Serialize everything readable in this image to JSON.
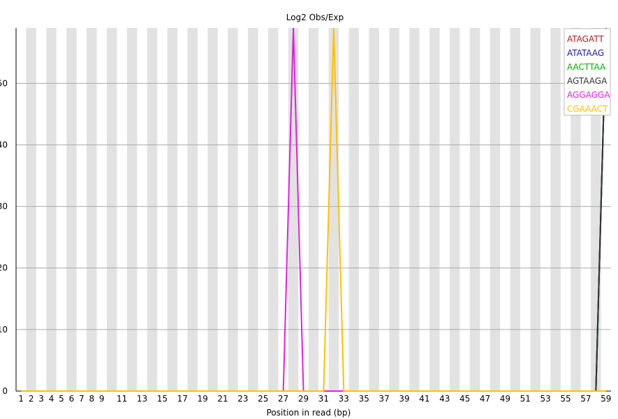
{
  "chart_data": {
    "type": "line",
    "title": "Log2 Obs/Exp",
    "xlabel": "Position in read (bp)",
    "ylabel": "",
    "x": [
      1,
      2,
      3,
      4,
      5,
      6,
      7,
      8,
      9,
      10,
      11,
      12,
      13,
      14,
      15,
      16,
      17,
      18,
      19,
      20,
      21,
      22,
      23,
      24,
      25,
      26,
      27,
      28,
      29,
      30,
      31,
      32,
      33,
      34,
      35,
      36,
      37,
      38,
      39,
      40,
      41,
      42,
      43,
      44,
      45,
      46,
      47,
      48,
      49,
      50,
      51,
      52,
      53,
      54,
      55,
      56,
      57,
      58,
      59
    ],
    "x_tick_labels": [
      "1",
      "2",
      "3",
      "4",
      "5",
      "6",
      "7",
      "8",
      "9",
      "11",
      "13",
      "15",
      "17",
      "19",
      "21",
      "23",
      "25",
      "27",
      "29",
      "31",
      "33",
      "35",
      "37",
      "39",
      "41",
      "43",
      "45",
      "47",
      "49",
      "51",
      "53",
      "55",
      "57",
      "59"
    ],
    "ylim": [
      0,
      59
    ],
    "yticks": [
      0,
      10,
      20,
      30,
      40,
      50
    ],
    "grid": true,
    "legend_position": "top-right",
    "series": [
      {
        "name": "ATAGATT",
        "color": "#b01c1c",
        "values": [
          0,
          0,
          0,
          0,
          0,
          0,
          0,
          0,
          0,
          0,
          0,
          0,
          0,
          0,
          0,
          0,
          0,
          0,
          0,
          0,
          0,
          0,
          0,
          0,
          0,
          0,
          0,
          0,
          0,
          0,
          0,
          0,
          0,
          0,
          0,
          0,
          0,
          0,
          0,
          0,
          0,
          0,
          0,
          0,
          0,
          0,
          0,
          0,
          0,
          0,
          0,
          0,
          0,
          0,
          0,
          0,
          0,
          0,
          59
        ]
      },
      {
        "name": "ATATAAG",
        "color": "#1c1ca0",
        "values": [
          0,
          0,
          0,
          0,
          0,
          0,
          0,
          0,
          0,
          0,
          0,
          0,
          0,
          0,
          0,
          0,
          0,
          0,
          0,
          0,
          0,
          0,
          0,
          0,
          0,
          0,
          0,
          0,
          0,
          0,
          0,
          0,
          0,
          0,
          0,
          0,
          0,
          0,
          0,
          0,
          0,
          0,
          0,
          0,
          0,
          0,
          0,
          0,
          0,
          0,
          0,
          0,
          0,
          0,
          0,
          0,
          0,
          0,
          59
        ]
      },
      {
        "name": "AACTTAA",
        "color": "#00b000",
        "values": [
          0,
          0,
          0,
          0,
          0,
          0,
          0,
          0,
          0,
          0,
          0,
          0,
          0,
          0,
          0,
          0,
          0,
          0,
          0,
          0,
          0,
          0,
          0,
          0,
          0,
          0,
          0,
          0,
          0,
          0,
          0,
          0,
          0,
          0,
          0,
          0,
          0,
          0,
          0,
          0,
          0,
          0,
          0,
          0,
          0,
          0,
          0,
          0,
          0,
          0,
          0,
          0,
          0,
          0,
          0,
          0,
          0,
          0,
          59
        ]
      },
      {
        "name": "AGTAAGA",
        "color": "#333333",
        "values": [
          0,
          0,
          0,
          0,
          0,
          0,
          0,
          0,
          0,
          0,
          0,
          0,
          0,
          0,
          0,
          0,
          0,
          0,
          0,
          0,
          0,
          0,
          0,
          0,
          0,
          0,
          0,
          0,
          0,
          0,
          0,
          0,
          0,
          0,
          0,
          0,
          0,
          0,
          0,
          0,
          0,
          0,
          0,
          0,
          0,
          0,
          0,
          0,
          0,
          0,
          0,
          0,
          0,
          0,
          0,
          0,
          0,
          0,
          59
        ]
      },
      {
        "name": "AGGAGGA",
        "color": "#e020e0",
        "values": [
          0,
          0,
          0,
          0,
          0,
          0,
          0,
          0,
          0,
          0,
          0,
          0,
          0,
          0,
          0,
          0,
          0,
          0,
          0,
          0,
          0,
          0,
          0,
          0,
          0,
          0,
          0,
          59,
          0,
          0,
          0,
          0,
          0,
          0,
          0,
          0,
          0,
          0,
          0,
          0,
          0,
          0,
          0,
          0,
          0,
          0,
          0,
          0,
          0,
          0,
          0,
          0,
          0,
          0,
          0,
          0,
          0,
          0,
          0
        ]
      },
      {
        "name": "CGAAACT",
        "color": "#ffc000",
        "values": [
          0,
          0,
          0,
          0,
          0,
          0,
          0,
          0,
          0,
          0,
          0,
          0,
          0,
          0,
          0,
          0,
          0,
          0,
          0,
          0,
          0,
          0,
          0,
          0,
          0,
          0,
          0,
          0,
          0,
          0,
          0,
          59,
          0,
          0,
          0,
          0,
          0,
          0,
          0,
          0,
          0,
          0,
          0,
          0,
          0,
          0,
          0,
          0,
          0,
          0,
          0,
          0,
          0,
          0,
          0,
          0,
          0,
          0,
          0
        ]
      }
    ]
  }
}
